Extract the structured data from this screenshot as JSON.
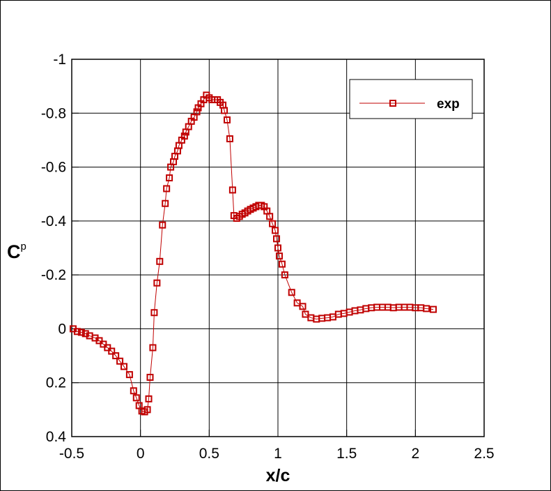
{
  "chart_data": {
    "type": "line",
    "xlabel": "x/c",
    "ylabel": [
      "C",
      "p"
    ],
    "xlim": [
      -0.5,
      2.5
    ],
    "xticks": [
      -0.5,
      0,
      0.5,
      1,
      1.5,
      2,
      2.5
    ],
    "ylim": [
      -1,
      0.4
    ],
    "yticks": [
      -1,
      -0.8,
      -0.6,
      -0.4,
      -0.2,
      0,
      0.2,
      0.4
    ],
    "y_inverted": true,
    "grid": true,
    "legend": "top-right",
    "marker": "square",
    "series": [
      {
        "name": "exp",
        "color": "#c00000",
        "x": [
          -0.49,
          -0.46,
          -0.43,
          -0.4,
          -0.37,
          -0.33,
          -0.3,
          -0.27,
          -0.24,
          -0.21,
          -0.18,
          -0.15,
          -0.12,
          -0.08,
          -0.05,
          -0.03,
          -0.01,
          0.01,
          0.03,
          0.05,
          0.06,
          0.07,
          0.09,
          0.1,
          0.12,
          0.14,
          0.16,
          0.18,
          0.19,
          0.21,
          0.22,
          0.24,
          0.25,
          0.27,
          0.28,
          0.3,
          0.32,
          0.33,
          0.35,
          0.37,
          0.39,
          0.41,
          0.42,
          0.44,
          0.46,
          0.48,
          0.5,
          0.52,
          0.54,
          0.56,
          0.58,
          0.6,
          0.61,
          0.63,
          0.65,
          0.67,
          0.68,
          0.7,
          0.72,
          0.74,
          0.76,
          0.78,
          0.8,
          0.82,
          0.84,
          0.86,
          0.88,
          0.9,
          0.92,
          0.94,
          0.96,
          0.98,
          0.99,
          1.0,
          1.01,
          1.03,
          1.05,
          1.1,
          1.14,
          1.18,
          1.2,
          1.24,
          1.28,
          1.32,
          1.36,
          1.4,
          1.44,
          1.48,
          1.52,
          1.56,
          1.6,
          1.64,
          1.68,
          1.72,
          1.76,
          1.8,
          1.84,
          1.88,
          1.92,
          1.96,
          2.0,
          2.04,
          2.08,
          2.13
        ],
        "values": [
          0.0,
          0.01,
          0.013,
          0.018,
          0.026,
          0.034,
          0.044,
          0.057,
          0.07,
          0.083,
          0.1,
          0.12,
          0.14,
          0.17,
          0.23,
          0.256,
          0.285,
          0.305,
          0.308,
          0.3,
          0.26,
          0.18,
          0.07,
          -0.06,
          -0.17,
          -0.25,
          -0.385,
          -0.465,
          -0.52,
          -0.56,
          -0.6,
          -0.62,
          -0.64,
          -0.66,
          -0.68,
          -0.7,
          -0.715,
          -0.73,
          -0.75,
          -0.77,
          -0.785,
          -0.805,
          -0.82,
          -0.835,
          -0.85,
          -0.867,
          -0.857,
          -0.85,
          -0.85,
          -0.85,
          -0.84,
          -0.83,
          -0.81,
          -0.775,
          -0.705,
          -0.515,
          -0.42,
          -0.41,
          -0.417,
          -0.425,
          -0.43,
          -0.437,
          -0.443,
          -0.448,
          -0.453,
          -0.458,
          -0.458,
          -0.453,
          -0.437,
          -0.417,
          -0.39,
          -0.365,
          -0.334,
          -0.3,
          -0.27,
          -0.24,
          -0.2,
          -0.135,
          -0.096,
          -0.083,
          -0.054,
          -0.041,
          -0.036,
          -0.039,
          -0.041,
          -0.044,
          -0.054,
          -0.057,
          -0.062,
          -0.067,
          -0.07,
          -0.075,
          -0.078,
          -0.08,
          -0.08,
          -0.08,
          -0.078,
          -0.08,
          -0.08,
          -0.08,
          -0.078,
          -0.078,
          -0.075,
          -0.072
        ]
      }
    ]
  }
}
